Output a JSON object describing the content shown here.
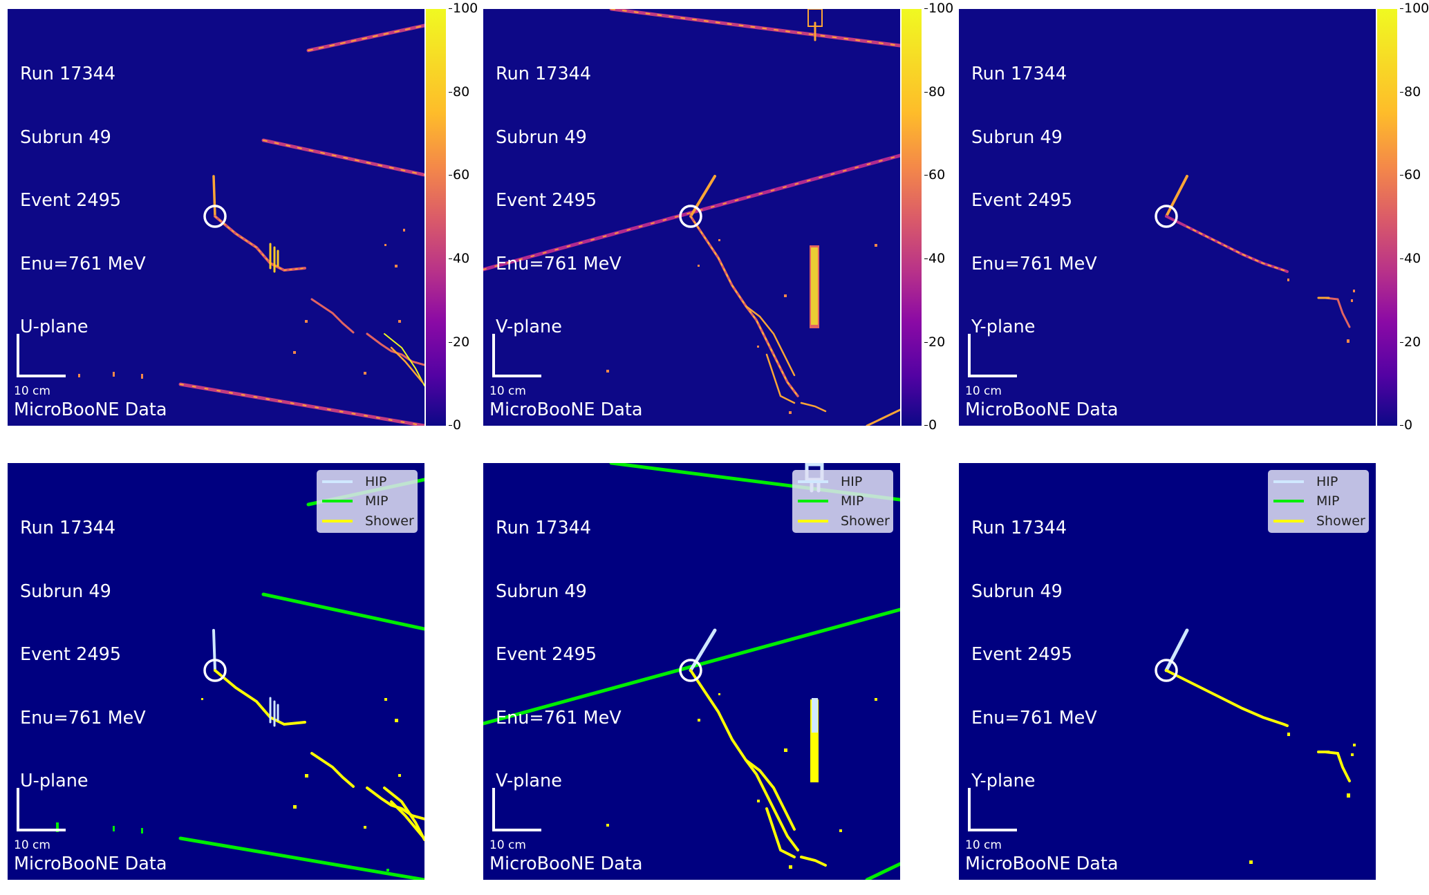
{
  "event": {
    "run": "Run 17344",
    "subrun": "Subrun 49",
    "event": "Event 2495",
    "energy": "Enu=761 MeV"
  },
  "planes": {
    "u": "U-plane",
    "v": "V-plane",
    "y": "Y-plane"
  },
  "footer_label": "MicroBooNE Data",
  "scale_bar_label": "10 cm",
  "colorbar": {
    "ticks": [
      "100",
      "80",
      "60",
      "40",
      "20",
      "0"
    ],
    "range": [
      0,
      100
    ],
    "colormap": "plasma"
  },
  "legend": {
    "items": [
      {
        "label": "HIP",
        "color": "#d0e8ff"
      },
      {
        "label": "MIP",
        "color": "#00ee00"
      },
      {
        "label": "Shower",
        "color": "#ffff00"
      }
    ]
  },
  "colors": {
    "charge_background": "#0d0887",
    "segmentation_background": "#000080",
    "vertex_circle": "#ffffff"
  }
}
